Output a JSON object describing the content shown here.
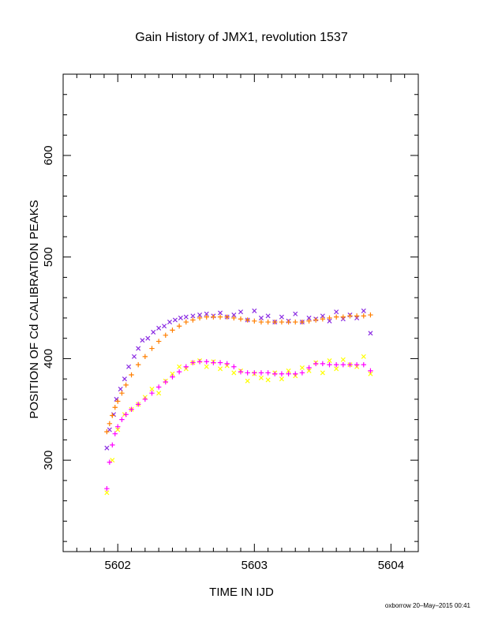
{
  "chart_data": {
    "type": "scatter",
    "title": "Gain History of JMX1, revolution 1537",
    "xlabel": "TIME IN IJD",
    "ylabel": "POSITION OF Cd CALIBRATION PEAKS",
    "xlim": [
      5601.6,
      5604.2
    ],
    "ylim": [
      210,
      680
    ],
    "x_ticks": [
      5602,
      5603,
      5604
    ],
    "y_ticks": [
      300,
      400,
      500,
      600
    ],
    "grid": false,
    "series": [
      {
        "marker": "x",
        "color": "#8a2be2",
        "x": [
          5601.92,
          5601.94,
          5601.97,
          5601.99,
          5602.02,
          5602.05,
          5602.08,
          5602.12,
          5602.15,
          5602.18,
          5602.22,
          5602.26,
          5602.3,
          5602.34,
          5602.38,
          5602.42,
          5602.46,
          5602.5,
          5602.55,
          5602.6,
          5602.65,
          5602.7,
          5602.75,
          5602.8,
          5602.85,
          5602.9,
          5602.95,
          5603.0,
          5603.05,
          5603.1,
          5603.15,
          5603.2,
          5603.25,
          5603.3,
          5603.35,
          5603.4,
          5603.45,
          5603.5,
          5603.55,
          5603.6,
          5603.65,
          5603.7,
          5603.75,
          5603.8,
          5603.85
        ],
        "y": [
          312,
          330,
          345,
          360,
          370,
          380,
          392,
          402,
          410,
          418,
          420,
          426,
          430,
          432,
          436,
          438,
          440,
          441,
          442,
          443,
          444,
          442,
          445,
          441,
          443,
          446,
          438,
          447,
          440,
          442,
          436,
          441,
          437,
          444,
          436,
          440,
          439,
          442,
          437,
          446,
          439,
          443,
          440,
          447,
          425
        ]
      },
      {
        "marker": "x",
        "color": "#ffff00",
        "x": [
          5601.92,
          5601.96,
          5602.0,
          5602.05,
          5602.1,
          5602.15,
          5602.2,
          5602.25,
          5602.3,
          5602.35,
          5602.4,
          5602.45,
          5602.5,
          5602.55,
          5602.6,
          5602.65,
          5602.7,
          5602.75,
          5602.8,
          5602.85,
          5602.9,
          5602.95,
          5603.0,
          5603.05,
          5603.1,
          5603.15,
          5603.2,
          5603.25,
          5603.3,
          5603.35,
          5603.4,
          5603.45,
          5603.5,
          5603.55,
          5603.6,
          5603.65,
          5603.7,
          5603.75,
          5603.8,
          5603.85
        ],
        "y": [
          268,
          300,
          330,
          345,
          350,
          355,
          362,
          370,
          366,
          378,
          385,
          392,
          390,
          396,
          398,
          392,
          397,
          390,
          393,
          386,
          388,
          378,
          385,
          381,
          379,
          386,
          380,
          388,
          383,
          391,
          388,
          396,
          386,
          398,
          390,
          399,
          394,
          392,
          402,
          385
        ]
      },
      {
        "marker": "+",
        "color": "#ff00ff",
        "x": [
          5601.92,
          5601.94,
          5601.96,
          5601.98,
          5602.0,
          5602.03,
          5602.06,
          5602.1,
          5602.15,
          5602.2,
          5602.25,
          5602.3,
          5602.35,
          5602.4,
          5602.45,
          5602.5,
          5602.55,
          5602.6,
          5602.65,
          5602.7,
          5602.75,
          5602.8,
          5602.85,
          5602.9,
          5602.95,
          5603.0,
          5603.05,
          5603.1,
          5603.15,
          5603.2,
          5603.25,
          5603.3,
          5603.35,
          5603.4,
          5603.45,
          5603.5,
          5603.55,
          5603.6,
          5603.65,
          5603.7,
          5603.75,
          5603.8,
          5603.85
        ],
        "y": [
          272,
          298,
          315,
          326,
          333,
          340,
          345,
          350,
          355,
          360,
          366,
          372,
          377,
          382,
          387,
          392,
          396,
          397,
          397,
          396,
          396,
          395,
          392,
          387,
          386,
          386,
          386,
          386,
          385,
          385,
          385,
          385,
          386,
          391,
          395,
          395,
          394,
          394,
          394,
          394,
          394,
          394,
          388
        ]
      },
      {
        "marker": "+",
        "color": "#ff7f00",
        "x": [
          5601.92,
          5601.94,
          5601.96,
          5601.98,
          5602.0,
          5602.03,
          5602.06,
          5602.1,
          5602.15,
          5602.2,
          5602.25,
          5602.3,
          5602.35,
          5602.4,
          5602.45,
          5602.5,
          5602.55,
          5602.6,
          5602.65,
          5602.7,
          5602.75,
          5602.8,
          5602.85,
          5602.9,
          5602.95,
          5603.0,
          5603.05,
          5603.1,
          5603.15,
          5603.2,
          5603.25,
          5603.3,
          5603.35,
          5603.4,
          5603.45,
          5603.5,
          5603.55,
          5603.6,
          5603.65,
          5603.7,
          5603.75,
          5603.8,
          5603.85
        ],
        "y": [
          328,
          336,
          344,
          352,
          358,
          366,
          374,
          384,
          394,
          402,
          410,
          417,
          423,
          428,
          432,
          436,
          438,
          440,
          441,
          441,
          441,
          441,
          440,
          439,
          438,
          437,
          436,
          436,
          436,
          436,
          436,
          436,
          436,
          437,
          438,
          439,
          440,
          441,
          441,
          442,
          442,
          442,
          443
        ]
      }
    ]
  },
  "footer": "oxborrow 20–May–2015 00:41"
}
